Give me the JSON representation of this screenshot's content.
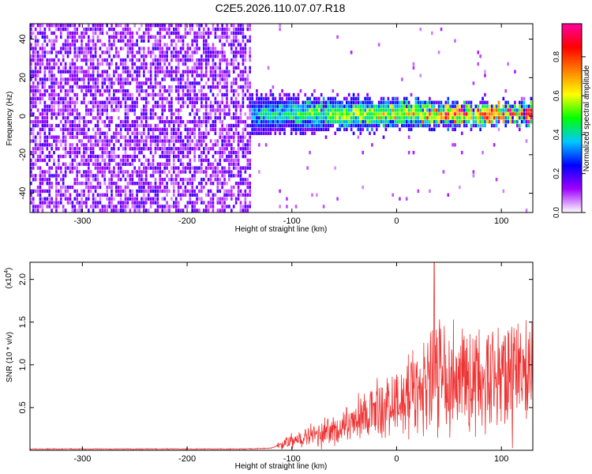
{
  "title": "C2E5.2026.110.07.07.R18",
  "chart_data": [
    {
      "type": "heatmap",
      "title": "C2E5.2026.110.07.07.R18",
      "xlabel": "Height of straight line (km)",
      "ylabel": "Frequency (Hz)",
      "xlim": [
        -350,
        130
      ],
      "ylim": [
        -50,
        48
      ],
      "x_ticks": [
        -300,
        -200,
        -100,
        0,
        100
      ],
      "x_tick_labels": [
        "-300",
        "-200",
        "-100",
        "0",
        "100"
      ],
      "y_ticks": [
        -40,
        -20,
        0,
        20,
        40
      ],
      "y_tick_labels": [
        "-40",
        "-20",
        "0",
        "20",
        "40"
      ],
      "noise_region_x": [
        -350,
        -140
      ],
      "signal_region_x": [
        -140,
        130
      ],
      "signal_center_freq_hz": 0,
      "colorbar": {
        "label": "Normalized spectral amplitude",
        "range": [
          0.0,
          0.97
        ],
        "ticks": [
          0.0,
          0.2,
          0.4,
          0.6,
          0.8
        ],
        "tick_labels": [
          "0.0",
          "0.2",
          "0.4",
          "0.6",
          "0.8"
        ],
        "colors": [
          "#ffffff",
          "#a000ff",
          "#0000ff",
          "#00c8ff",
          "#00ff00",
          "#ffff00",
          "#ff8000",
          "#ff0000",
          "#ff00a0"
        ]
      }
    },
    {
      "type": "line",
      "xlabel": "Height of straight line (km)",
      "ylabel": "SNR (10 * v/v)",
      "scale_label": "(x10",
      "scale_exponent": "4",
      "scale_close": ")",
      "xlim": [
        -350,
        130
      ],
      "ylim": [
        0,
        2.2
      ],
      "x_ticks": [
        -300,
        -200,
        -100,
        0,
        100
      ],
      "x_tick_labels": [
        "-300",
        "-200",
        "-100",
        "0",
        "100"
      ],
      "y_ticks": [
        0.5,
        1.0,
        1.5,
        2.0
      ],
      "y_tick_labels": [
        "0.5",
        "1.0",
        "1.5",
        "2.0"
      ],
      "line_color": "#ee3333",
      "series": [
        {
          "name": "SNR",
          "x": [
            -350,
            -300,
            -250,
            -200,
            -150,
            -120,
            -100,
            -80,
            -60,
            -40,
            -20,
            0,
            20,
            40,
            60,
            80,
            100,
            120,
            130
          ],
          "values": [
            0.01,
            0.01,
            0.01,
            0.01,
            0.01,
            0.02,
            0.12,
            0.2,
            0.28,
            0.38,
            0.5,
            0.62,
            0.8,
            0.92,
            0.95,
            0.95,
            0.98,
            1.02,
            1.02
          ]
        }
      ],
      "peak": {
        "x": 36,
        "y": 2.2
      }
    }
  ]
}
